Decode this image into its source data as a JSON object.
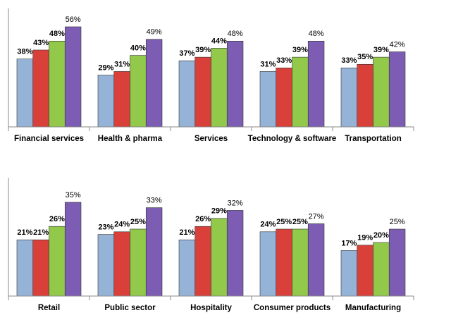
{
  "chart_data": [
    {
      "type": "bar",
      "categories": [
        "Financial services",
        "Health & pharma",
        "Services",
        "Technology & software",
        "Transportation"
      ],
      "series": [
        {
          "color": "#95b3d7",
          "values": [
            38,
            29,
            37,
            31,
            33
          ],
          "value_labels": [
            "38%",
            "29%",
            "37%",
            "31%",
            "33%"
          ]
        },
        {
          "color": "#d9403a",
          "values": [
            43,
            31,
            39,
            33,
            35
          ],
          "value_labels": [
            "43%",
            "31%",
            "39%",
            "33%",
            "35%"
          ]
        },
        {
          "color": "#92c94a",
          "values": [
            48,
            40,
            44,
            39,
            39
          ],
          "value_labels": [
            "48%",
            "40%",
            "44%",
            "39%",
            "39%"
          ]
        },
        {
          "color": "#7d5cb4",
          "values": [
            56,
            49,
            48,
            48,
            42
          ],
          "value_labels": [
            "56%",
            "49%",
            "48%",
            "48%",
            "42%"
          ]
        }
      ]
    },
    {
      "type": "bar",
      "categories": [
        "Retail",
        "Public sector",
        "Hospitality",
        "Consumer products",
        "Manufacturing"
      ],
      "series": [
        {
          "color": "#95b3d7",
          "values": [
            21,
            23,
            21,
            24,
            17
          ],
          "value_labels": [
            "21%",
            "23%",
            "21%",
            "24%",
            "17%"
          ]
        },
        {
          "color": "#d9403a",
          "values": [
            21,
            24,
            26,
            25,
            19
          ],
          "value_labels": [
            "21%",
            "24%",
            "26%",
            "25%",
            "19%"
          ]
        },
        {
          "color": "#92c94a",
          "values": [
            26,
            25,
            29,
            25,
            20
          ],
          "value_labels": [
            "26%",
            "25%",
            "29%",
            "25%",
            "20%"
          ]
        },
        {
          "color": "#7d5cb4",
          "values": [
            35,
            33,
            32,
            27,
            25
          ],
          "value_labels": [
            "35%",
            "33%",
            "32%",
            "27%",
            "25%"
          ]
        }
      ]
    }
  ]
}
